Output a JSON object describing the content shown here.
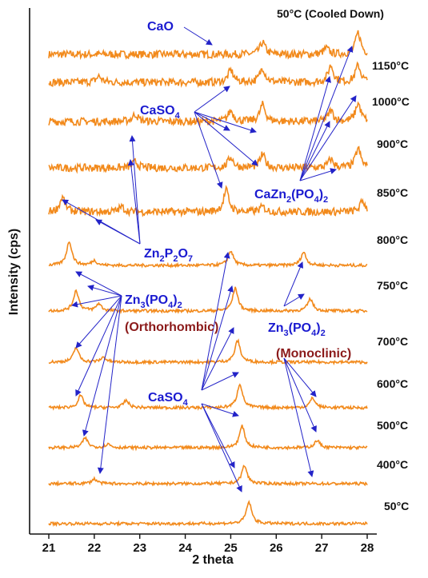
{
  "colors": {
    "trace": "#f28a1c",
    "arrow": "#2323c8",
    "annotation_blue": "#1a1ad0",
    "annotation_red": "#8b1a1a",
    "axis": "#111111"
  },
  "chart_data": {
    "type": "line",
    "title": "",
    "xlabel": "2 theta",
    "ylabel": "Intensity (cps)",
    "xlim": [
      21,
      28
    ],
    "x_ticks": [
      "21",
      "22",
      "23",
      "24",
      "25",
      "26",
      "27",
      "28"
    ],
    "stacked": true,
    "grid": false,
    "series": [
      {
        "name": "50°C (Cooled Down)",
        "peaks": [
          [
            25.7,
            0.5
          ],
          [
            27.8,
            0.9
          ],
          [
            27.1,
            0.25
          ]
        ]
      },
      {
        "name": "1150°C",
        "peaks": [
          [
            22.1,
            0.25
          ],
          [
            25.0,
            0.5
          ],
          [
            25.7,
            0.6
          ],
          [
            27.2,
            0.7
          ],
          [
            27.8,
            0.7
          ]
        ]
      },
      {
        "name": "1000°C",
        "peaks": [
          [
            22.9,
            0.3
          ],
          [
            25.0,
            0.45
          ],
          [
            25.7,
            0.7
          ],
          [
            27.2,
            0.45
          ],
          [
            27.8,
            0.75
          ]
        ]
      },
      {
        "name": "900°C",
        "peaks": [
          [
            22.9,
            0.25
          ],
          [
            25.0,
            0.45
          ],
          [
            25.7,
            0.55
          ],
          [
            27.2,
            0.35
          ],
          [
            27.8,
            0.8
          ]
        ]
      },
      {
        "name": "850°C",
        "peaks": [
          [
            21.3,
            0.6
          ],
          [
            22.6,
            0.2
          ],
          [
            24.9,
            0.9
          ],
          [
            25.7,
            0.2
          ],
          [
            27.9,
            0.45
          ]
        ]
      },
      {
        "name": "800°C",
        "peaks": [
          [
            21.45,
            1.0
          ],
          [
            22.0,
            0.2
          ],
          [
            25.0,
            0.6
          ],
          [
            26.6,
            0.55
          ]
        ]
      },
      {
        "name": "750°C",
        "peaks": [
          [
            21.6,
            0.85
          ],
          [
            22.1,
            0.3
          ],
          [
            25.1,
            0.95
          ],
          [
            26.75,
            0.5
          ]
        ]
      },
      {
        "name": "700°C",
        "peaks": [
          [
            21.6,
            0.6
          ],
          [
            22.2,
            0.2
          ],
          [
            25.15,
            0.9
          ]
        ]
      },
      {
        "name": "600°C",
        "peaks": [
          [
            21.7,
            0.5
          ],
          [
            22.7,
            0.3
          ],
          [
            25.2,
            1.0
          ],
          [
            26.8,
            0.4
          ]
        ]
      },
      {
        "name": "500°C",
        "peaks": [
          [
            21.8,
            0.4
          ],
          [
            22.3,
            0.15
          ],
          [
            25.25,
            0.9
          ],
          [
            26.9,
            0.3
          ]
        ]
      },
      {
        "name": "400°C",
        "peaks": [
          [
            22.0,
            0.2
          ],
          [
            25.3,
            0.75
          ]
        ]
      },
      {
        "name": "50°C",
        "peaks": [
          [
            25.4,
            0.9
          ]
        ]
      }
    ],
    "annotations": [
      {
        "text": "CaO"
      },
      {
        "text": "CaSO",
        "sub": "4"
      },
      {
        "text": "CaZn",
        "sub": "2",
        "text2": "(PO",
        "sub2": "4",
        "text3": ")",
        "sub3": "2"
      },
      {
        "text": "Zn",
        "sub": "2",
        "text2": "P",
        "sub2": "2",
        "text3": "O",
        "sub3": "7"
      },
      {
        "text": "Zn",
        "sub": "3",
        "text2": "(PO",
        "sub2": "4",
        "text3": ")",
        "sub3": "2"
      },
      {
        "text": "(Orthorhombic)"
      },
      {
        "text": "Zn",
        "sub": "3",
        "text2": "(PO",
        "sub2": "4",
        "text3": ")",
        "sub3": "2"
      },
      {
        "text": "(Monoclinic)"
      },
      {
        "text": "CaSO",
        "sub": "4"
      }
    ]
  }
}
